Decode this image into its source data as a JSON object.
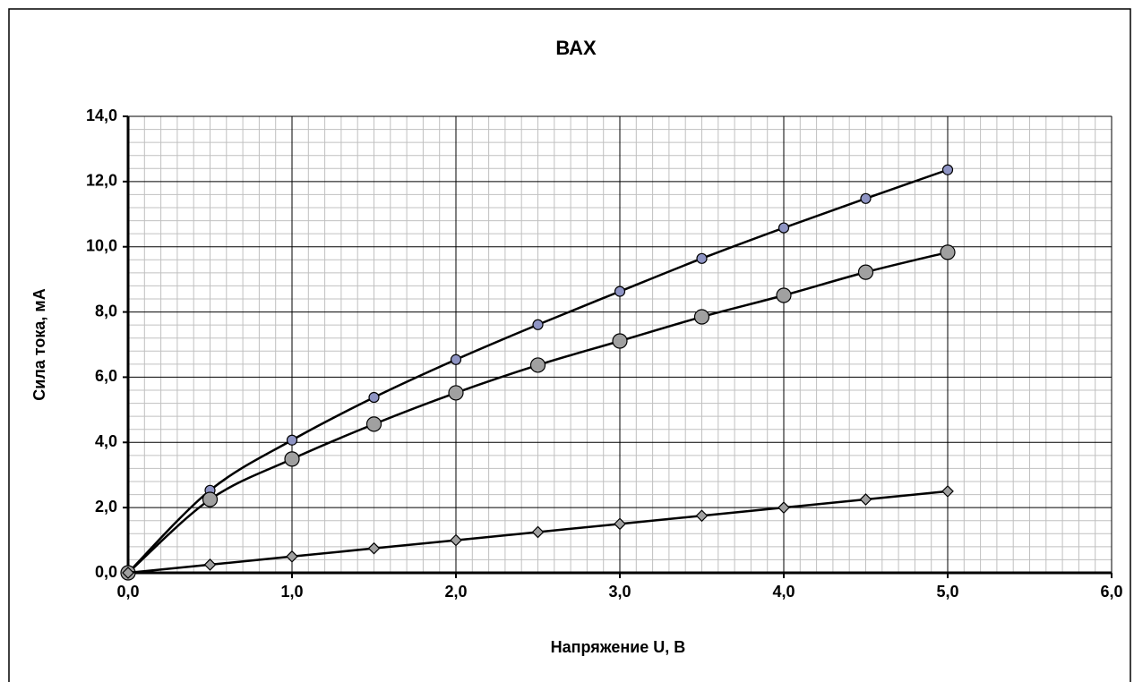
{
  "chart_data": {
    "type": "line",
    "title": "ВАХ",
    "x_label": "Напряжение U, В",
    "y_label": "Сила тока, мА",
    "x": [
      0,
      0.5,
      1.0,
      1.5,
      2.0,
      2.5,
      3.0,
      3.5,
      4.0,
      4.5,
      5.0
    ],
    "series": [
      {
        "color": "#8e94c4",
        "marker": "circle-small",
        "values": [
          0,
          2.53,
          4.07,
          5.38,
          6.54,
          7.61,
          8.63,
          9.64,
          10.58,
          11.48,
          12.36
        ]
      },
      {
        "color": "#a0a0a0",
        "marker": "circle-large",
        "values": [
          0,
          2.25,
          3.49,
          4.56,
          5.52,
          6.37,
          7.11,
          7.85,
          8.51,
          9.22,
          9.83
        ]
      },
      {
        "color": "#a0a0a0",
        "marker": "diamond",
        "values": [
          0,
          0.25,
          0.5,
          0.75,
          1.0,
          1.25,
          1.5,
          1.75,
          2.0,
          2.25,
          2.5
        ]
      }
    ],
    "xlim": [
      0,
      6
    ],
    "ylim": [
      0,
      14
    ],
    "xticks": [
      {
        "value": 0,
        "label": "0,0"
      },
      {
        "value": 1,
        "label": "1,0"
      },
      {
        "value": 2,
        "label": "2,0"
      },
      {
        "value": 3,
        "label": "3,0"
      },
      {
        "value": 4,
        "label": "4,0"
      },
      {
        "value": 5,
        "label": "5,0"
      },
      {
        "value": 6,
        "label": "6,0"
      }
    ],
    "yticks": [
      {
        "value": 0,
        "label": "0,0"
      },
      {
        "value": 2,
        "label": "2,0"
      },
      {
        "value": 4,
        "label": "4,0"
      },
      {
        "value": 6,
        "label": "6,0"
      },
      {
        "value": 8,
        "label": "8,0"
      },
      {
        "value": 10,
        "label": "10,0"
      },
      {
        "value": 12,
        "label": "12,0"
      },
      {
        "value": 14,
        "label": "14,0"
      }
    ],
    "grid": true,
    "minor_grid": true,
    "smooth": true
  }
}
